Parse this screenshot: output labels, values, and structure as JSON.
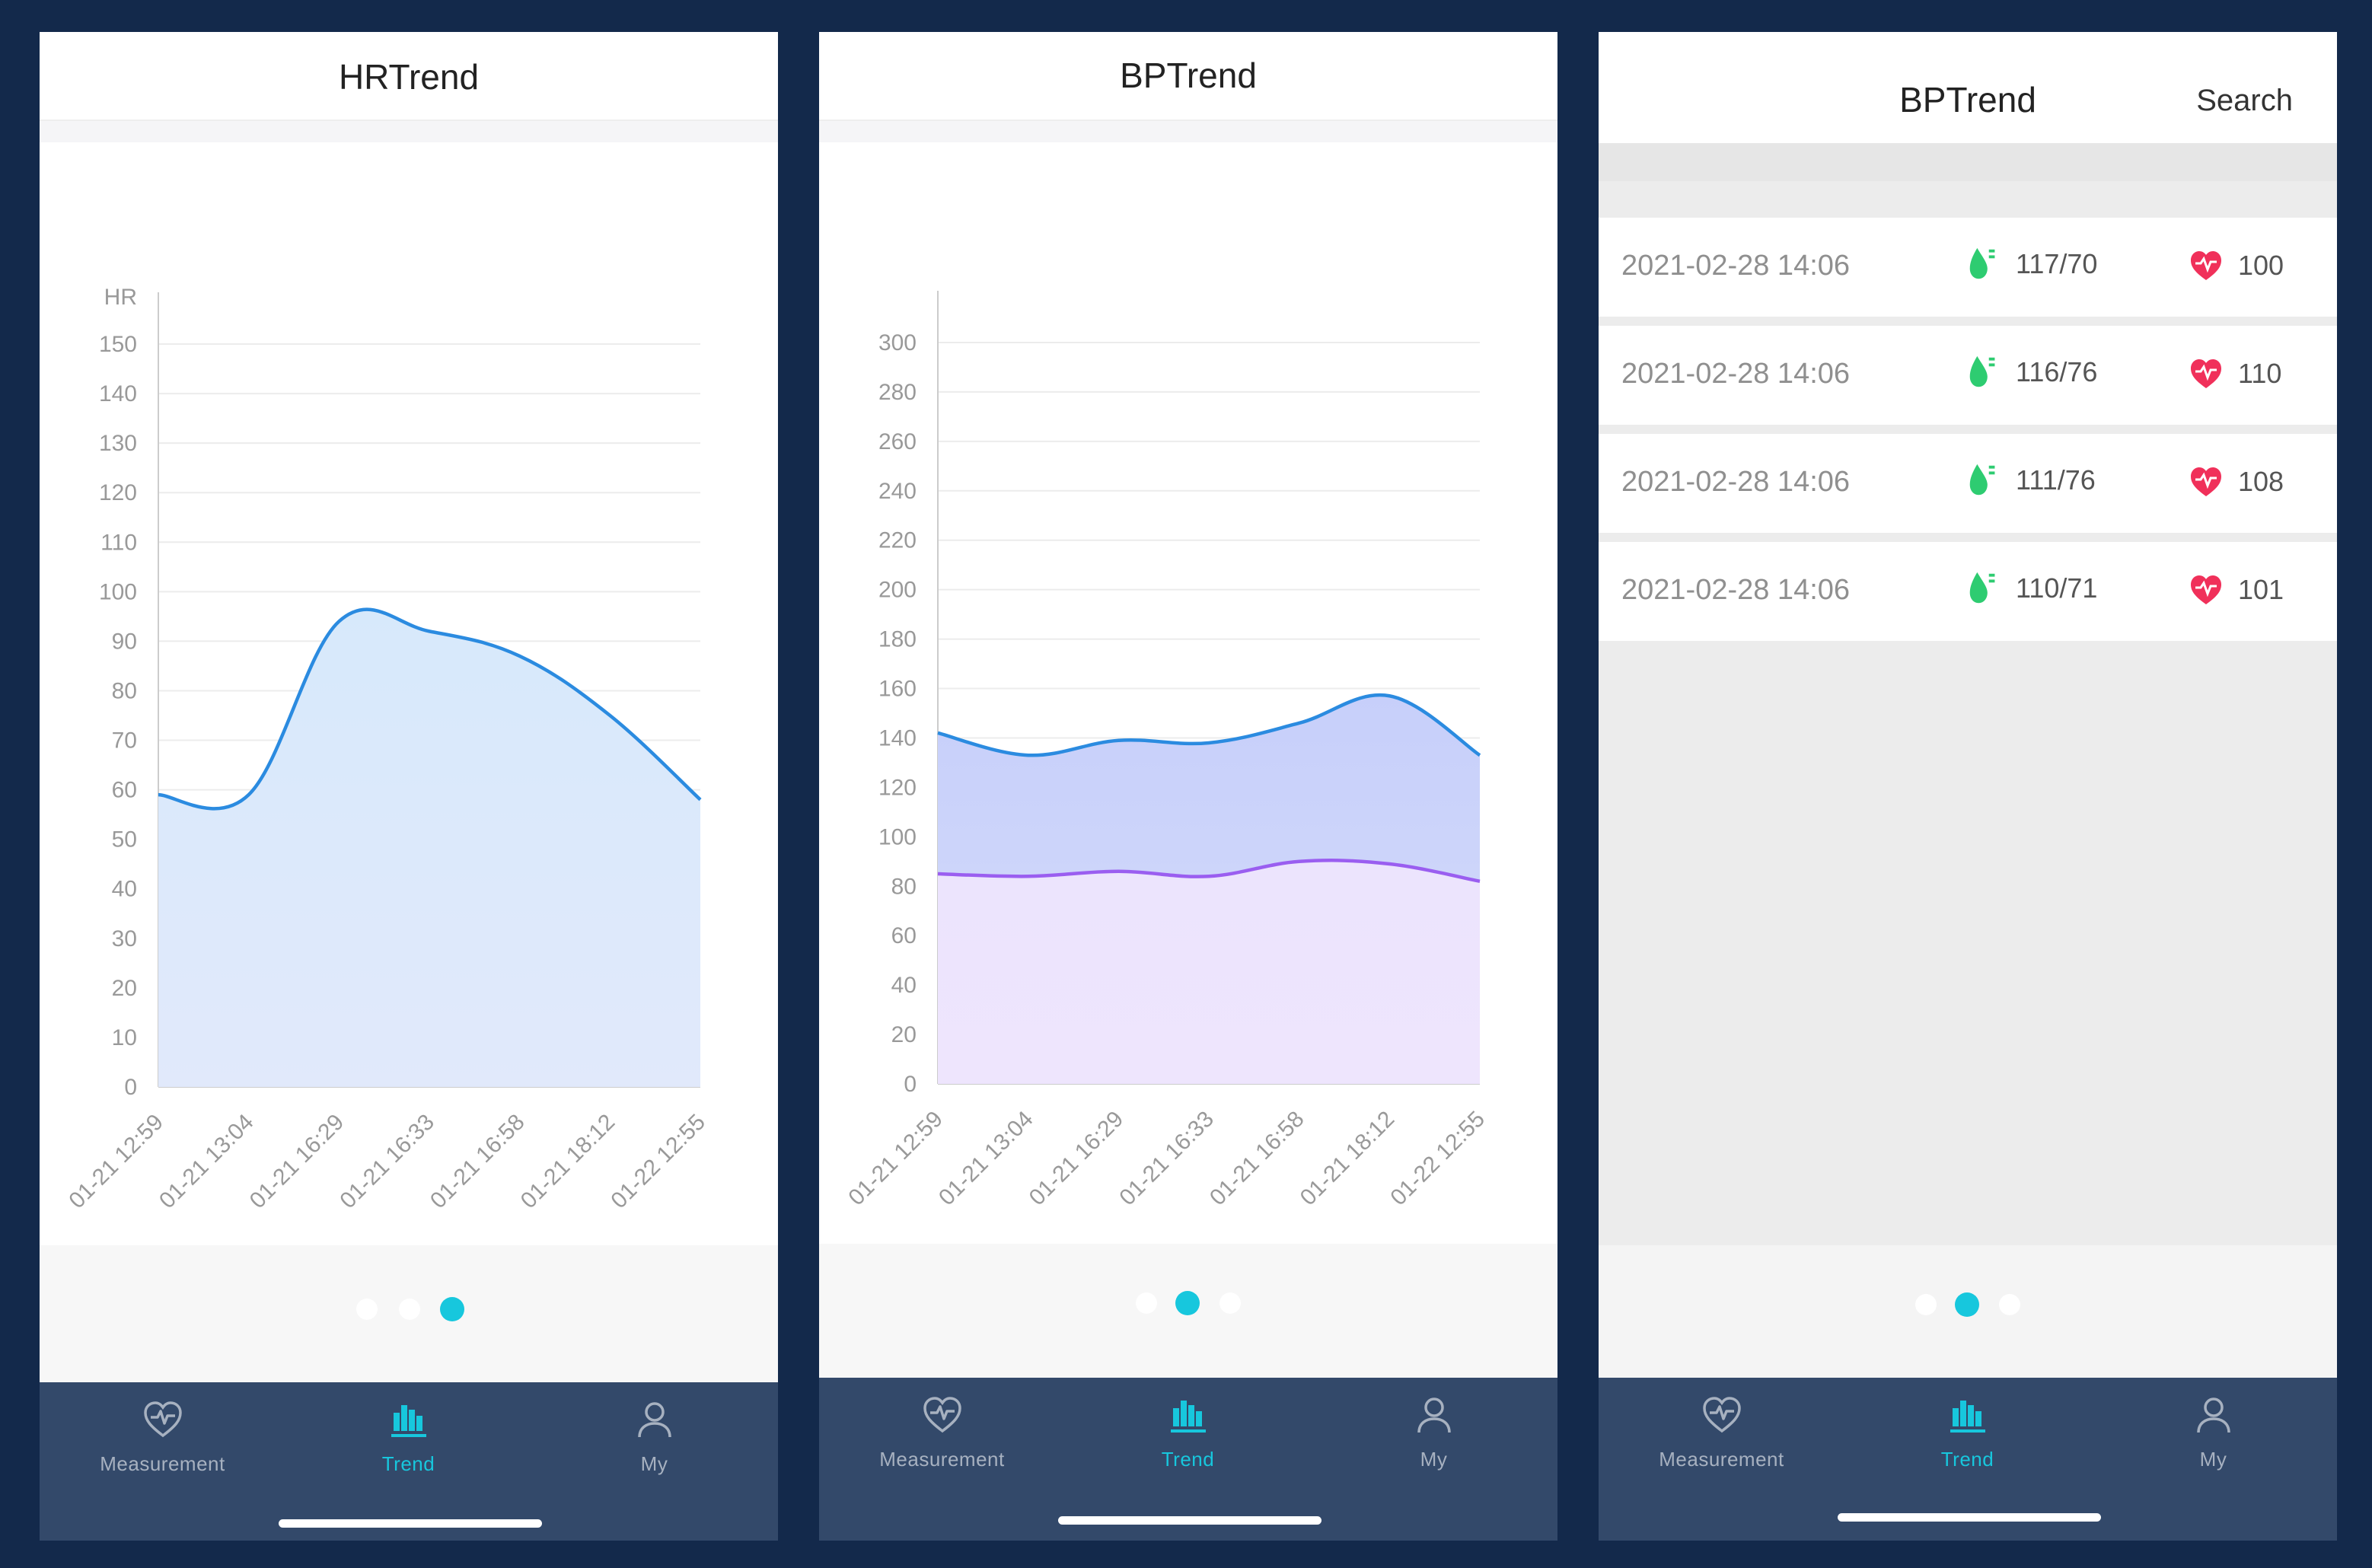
{
  "colors": {
    "frame_background": "#13294b",
    "accent": "#17c7dd",
    "tabbar": "#33496a",
    "tab_inactive": "#a7b1c0",
    "line_hr": "#2b8be0",
    "line_systolic": "#2b8be0",
    "line_diastolic": "#9a5ef0",
    "bp_icon": "#2ecc71",
    "heart_icon": "#f0305a"
  },
  "screens": {
    "hr": {
      "title": "HRTrend",
      "pager_active": 2,
      "chart_data": {
        "type": "area",
        "ylabel": "HR",
        "ylim": [
          0,
          150
        ],
        "yticks": [
          0,
          10,
          20,
          30,
          40,
          50,
          60,
          70,
          80,
          90,
          100,
          110,
          120,
          130,
          140,
          150
        ],
        "categories": [
          "01-21 12:59",
          "01-21 13:04",
          "01-21 16:29",
          "01-21 16:33",
          "01-21 16:58",
          "01-21 18:12",
          "01-22 12:55"
        ],
        "series": [
          {
            "values": [
              59,
              59,
              94,
              92,
              87,
              75,
              58
            ]
          }
        ],
        "grid": true
      }
    },
    "bp": {
      "title": "BPTrend",
      "pager_active": 1,
      "chart_data": {
        "type": "area",
        "ylim": [
          0,
          300
        ],
        "yticks": [
          0,
          20,
          40,
          60,
          80,
          100,
          120,
          140,
          160,
          180,
          200,
          220,
          240,
          260,
          280,
          300
        ],
        "categories": [
          "01-21 12:59",
          "01-21 13:04",
          "01-21 16:29",
          "01-21 16:33",
          "01-21 16:58",
          "01-21 18:12",
          "01-22 12:55"
        ],
        "series": [
          {
            "values": [
              142,
              133,
              139,
              138,
              146,
              157,
              133
            ]
          },
          {
            "values": [
              85,
              84,
              86,
              84,
              90,
              89,
              82
            ]
          }
        ],
        "grid": true
      }
    },
    "list": {
      "title": "BPTrend",
      "search_label": "Search",
      "pager_active": 1,
      "records": [
        {
          "time": "2021-02-28 14:06",
          "bp": "117/70",
          "hr": "100"
        },
        {
          "time": "2021-02-28 14:06",
          "bp": "116/76",
          "hr": "110"
        },
        {
          "time": "2021-02-28 14:06",
          "bp": "111/76",
          "hr": "108"
        },
        {
          "time": "2021-02-28 14:06",
          "bp": "110/71",
          "hr": "101"
        }
      ]
    }
  },
  "tabbar": {
    "tabs": [
      {
        "label": "Measurement",
        "icon": "heart-pulse-icon"
      },
      {
        "label": "Trend",
        "icon": "bar-chart-icon",
        "active": true
      },
      {
        "label": "My",
        "icon": "person-icon"
      }
    ]
  }
}
